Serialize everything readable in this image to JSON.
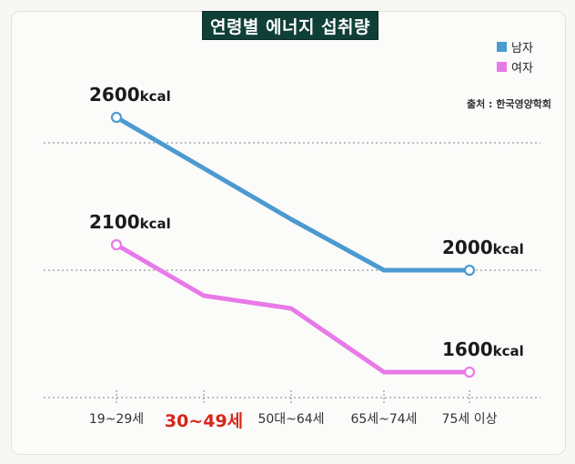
{
  "title": "연령별 에너지 섭취량",
  "source": "출처 : 한국영양학회",
  "colors": {
    "male": "#4b9ad0",
    "female": "#e87ae8",
    "highlight": "#d8261a",
    "title_bg": "#0f3f37"
  },
  "chart_data": {
    "type": "line",
    "title": "연령별 에너지 섭취량",
    "categories": [
      "19~29세",
      "30~49세",
      "50대~64세",
      "65세~74세",
      "75세 이상"
    ],
    "highlight_category": "30~49세",
    "series": [
      {
        "name": "남자",
        "values": [
          2600,
          2400,
          2200,
          2000,
          2000
        ]
      },
      {
        "name": "여자",
        "values": [
          2100,
          1900,
          1850,
          1600,
          1600
        ]
      }
    ],
    "data_labels": [
      {
        "series": 0,
        "index": 0,
        "value": "2600",
        "unit": "kcal"
      },
      {
        "series": 1,
        "index": 0,
        "value": "2100",
        "unit": "kcal"
      },
      {
        "series": 0,
        "index": 4,
        "value": "2000",
        "unit": "kcal"
      },
      {
        "series": 1,
        "index": 4,
        "value": "1600",
        "unit": "kcal"
      }
    ],
    "gridlines": [
      2500,
      2000,
      1500
    ],
    "ylim": [
      1500,
      2650
    ],
    "legend": "top-right",
    "xlabel": "",
    "ylabel": ""
  }
}
